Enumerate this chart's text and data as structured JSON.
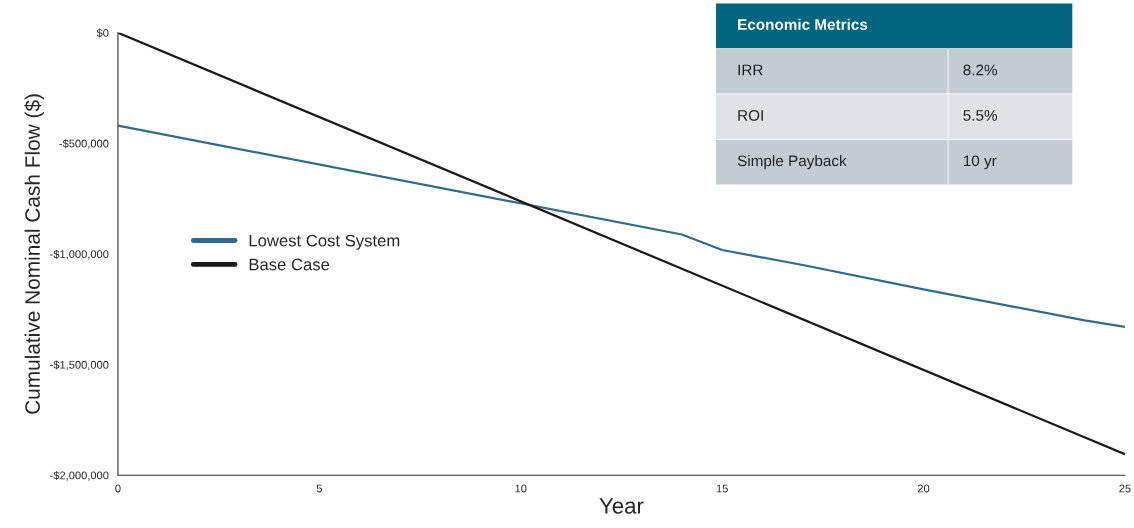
{
  "chart_data": {
    "type": "line",
    "xlabel": "Year",
    "ylabel": "Cumulative Nominal Cash Flow ($)",
    "series": [
      {
        "name": "Lowest Cost System",
        "color": "#2f6b8c",
        "x": [
          0,
          14,
          15,
          17,
          20,
          24,
          25
        ],
        "values": [
          -420000,
          -912000,
          -982000,
          -1050000,
          -1160000,
          -1300000,
          -1330000
        ]
      },
      {
        "name": "Base Case",
        "color": "#1a1a1a",
        "x": [
          0,
          25
        ],
        "values": [
          0,
          -1905000
        ]
      }
    ],
    "xlim": [
      0,
      25
    ],
    "xticks": [
      0,
      5,
      10,
      15,
      20,
      25
    ],
    "ylim": [
      -2000000,
      0
    ],
    "yticks": [
      {
        "value": -2000000,
        "label": "-$2,000,000"
      },
      {
        "value": -1500000,
        "label": "-$1,500,000"
      },
      {
        "value": -1000000,
        "label": "-$1,000,000"
      },
      {
        "value": -500000,
        "label": "-$500,000"
      },
      {
        "value": 0,
        "label": "$0"
      }
    ],
    "grid": false,
    "legend": "left",
    "line_style": "solid",
    "marker": "none",
    "annotations": [
      "Economic Metrics",
      "IRR",
      "8.2%",
      "ROI",
      "5.5%",
      "Simple Payback",
      "10 yr"
    ]
  }
}
